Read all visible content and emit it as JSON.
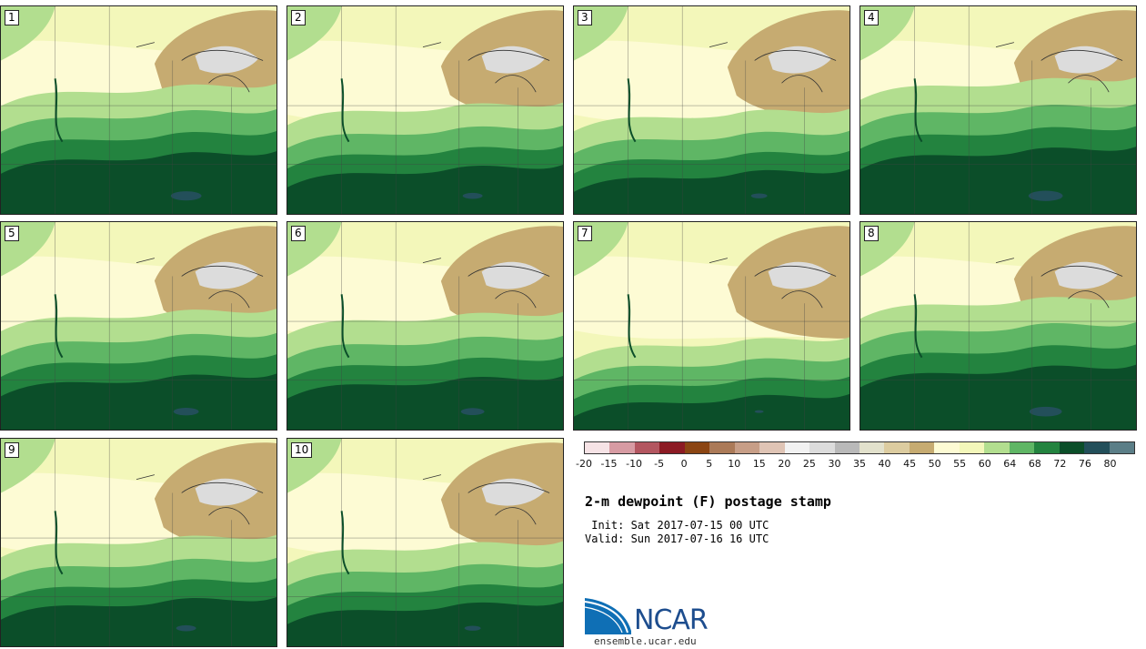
{
  "figure": {
    "title": "2-m dewpoint (F) postage stamp",
    "init_line": " Init: Sat 2017-07-15 00 UTC",
    "valid_line": "Valid: Sun 2017-07-16 16 UTC",
    "site": "ensemble.ucar.edu",
    "logo_text": "NCAR"
  },
  "members": [
    {
      "label": "1",
      "moisture": 0.85
    },
    {
      "label": "2",
      "moisture": 0.55
    },
    {
      "label": "3",
      "moisture": 0.45
    },
    {
      "label": "4",
      "moisture": 0.95
    },
    {
      "label": "5",
      "moisture": 0.7
    },
    {
      "label": "6",
      "moisture": 0.65
    },
    {
      "label": "7",
      "moisture": 0.25
    },
    {
      "label": "8",
      "moisture": 0.9
    },
    {
      "label": "9",
      "moisture": 0.55
    },
    {
      "label": "10",
      "moisture": 0.45
    }
  ],
  "colorbar": {
    "unit": "F",
    "ticks": [
      "-20",
      "-15",
      "-10",
      "-5",
      "0",
      "5",
      "10",
      "15",
      "20",
      "25",
      "30",
      "35",
      "40",
      "45",
      "50",
      "55",
      "60",
      "64",
      "68",
      "72",
      "76",
      "80"
    ],
    "colors": [
      "#f6e3e6",
      "#d79ba3",
      "#b35660",
      "#8c1b24",
      "#8b4513",
      "#ab7a58",
      "#c79e87",
      "#dfc4b5",
      "#f2f2f2",
      "#dcdcdc",
      "#b9b9b9",
      "#e2e1cc",
      "#dccca0",
      "#c6ab71",
      "#fdfbd4",
      "#f3f7ba",
      "#b2de8f",
      "#5fb665",
      "#23833f",
      "#0b4e29",
      "#234f5a",
      "#5b7e87"
    ]
  },
  "palette": {
    "dry": "#c6ab71",
    "dry_light": "#dccca0",
    "lakes": "#dcdcdc",
    "pale": "#fdfbd4",
    "light": "#f3f7ba",
    "green60": "#b2de8f",
    "green64": "#5fb665",
    "green68": "#23833f",
    "green72": "#0b4e29",
    "green76": "#234f5a",
    "ncar_blue": "#0f6fb5"
  }
}
